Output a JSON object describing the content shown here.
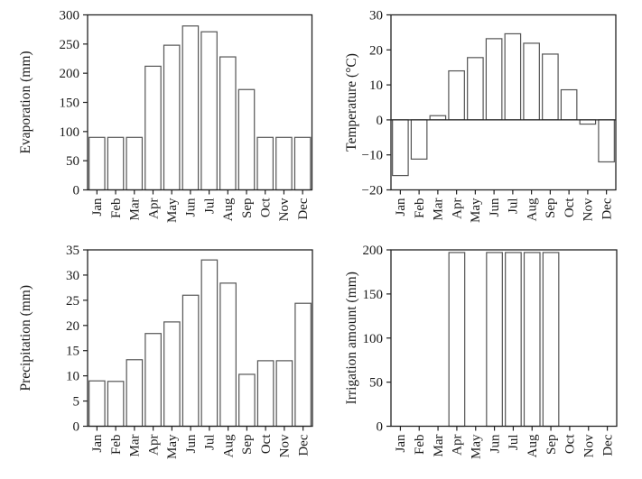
{
  "figure": {
    "background": "#ffffff"
  },
  "colors": {
    "frame": "#222222",
    "bar_fill": "#ffffff",
    "bar_stroke": "#555555",
    "text": "#1a1a1a"
  },
  "chart_data": [
    {
      "id": "evaporation",
      "type": "bar",
      "title": "",
      "xlabel": "",
      "ylabel": "Evaporation (mm)",
      "categories": [
        "Jan",
        "Feb",
        "Mar",
        "Apr",
        "May",
        "Jun",
        "Jul",
        "Aug",
        "Sep",
        "Oct",
        "Nov",
        "Dec"
      ],
      "values": [
        90,
        90,
        90,
        212,
        248,
        281,
        271,
        228,
        172,
        90,
        90,
        90
      ],
      "ylim": [
        0,
        300
      ],
      "yticks": [
        0,
        50,
        100,
        150,
        200,
        250,
        300
      ],
      "ytick_labels": [
        "0",
        "50",
        "100",
        "150",
        "200",
        "250",
        "300"
      ],
      "zero_line": false,
      "grid": false,
      "legend_position": "none"
    },
    {
      "id": "temperature",
      "type": "bar",
      "title": "",
      "xlabel": "",
      "ylabel": "Temperature (°C)",
      "categories": [
        "Jan",
        "Feb",
        "Mar",
        "Apr",
        "May",
        "Jun",
        "Jul",
        "Aug",
        "Sep",
        "Oct",
        "Nov",
        "Dec"
      ],
      "values": [
        -15.9,
        -11.2,
        1.2,
        14.0,
        17.8,
        23.2,
        24.6,
        21.9,
        18.8,
        8.6,
        -1.2,
        -12.0
      ],
      "ylim": [
        -20,
        30
      ],
      "yticks": [
        -20,
        -10,
        0,
        10,
        20,
        30
      ],
      "ytick_labels": [
        "−20",
        "−10",
        "0",
        "10",
        "20",
        "30"
      ],
      "zero_line": true,
      "grid": false,
      "legend_position": "none"
    },
    {
      "id": "precipitation",
      "type": "bar",
      "title": "",
      "xlabel": "",
      "ylabel": "Precipitation (mm)",
      "categories": [
        "Jan",
        "Feb",
        "Mar",
        "Apr",
        "May",
        "Jun",
        "Jul",
        "Aug",
        "Sep",
        "Oct",
        "Nov",
        "Dec"
      ],
      "values": [
        9.0,
        8.9,
        13.2,
        18.4,
        20.7,
        26.0,
        33.0,
        28.4,
        10.3,
        13.0,
        13.0,
        24.4
      ],
      "ylim": [
        0,
        35
      ],
      "yticks": [
        0,
        5,
        10,
        15,
        20,
        25,
        30,
        35
      ],
      "ytick_labels": [
        "0",
        "5",
        "10",
        "15",
        "20",
        "25",
        "30",
        "35"
      ],
      "zero_line": false,
      "grid": false,
      "legend_position": "none"
    },
    {
      "id": "irrigation",
      "type": "bar",
      "title": "",
      "xlabel": "",
      "ylabel": "Irrigation amount (mm)",
      "categories": [
        "Jan",
        "Feb",
        "Mar",
        "Apr",
        "May",
        "Jun",
        "Jul",
        "Aug",
        "Sep",
        "Oct",
        "Nov",
        "Dec"
      ],
      "values": [
        0,
        0,
        0,
        197,
        0,
        197,
        197,
        197,
        197,
        0,
        0,
        0
      ],
      "ylim": [
        0,
        200
      ],
      "yticks": [
        0,
        50,
        100,
        150,
        200
      ],
      "ytick_labels": [
        "0",
        "50",
        "100",
        "150",
        "200"
      ],
      "zero_line": false,
      "grid": false,
      "legend_position": "none"
    }
  ]
}
